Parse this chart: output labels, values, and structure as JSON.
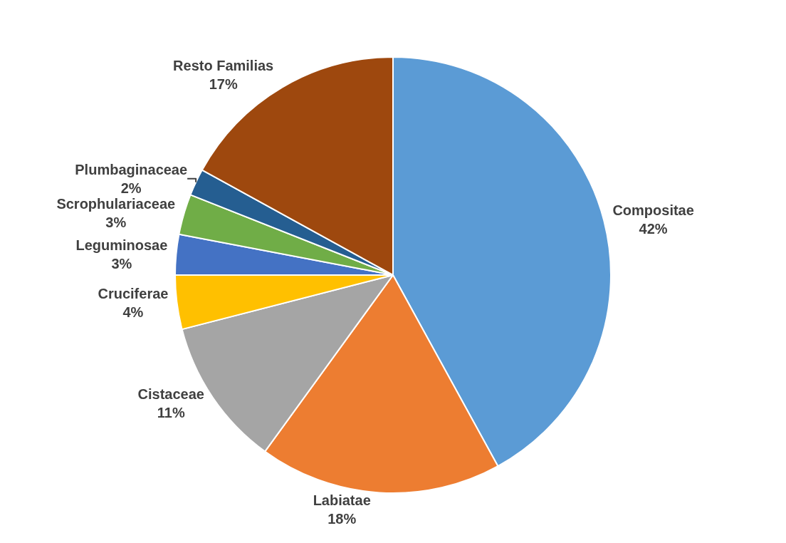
{
  "chart_data": {
    "type": "pie",
    "categories": [
      "Compositae",
      "Labiatae",
      "Cistaceae",
      "Cruciferae",
      "Leguminosae",
      "Scrophulariaceae",
      "Plumbaginaceae",
      "Resto Familias"
    ],
    "values": [
      42,
      18,
      11,
      4,
      3,
      3,
      2,
      17
    ],
    "value_labels": [
      "42%",
      "18%",
      "11%",
      "4%",
      "3%",
      "3%",
      "2%",
      "17%"
    ],
    "colors": [
      "#5b9bd5",
      "#ed7d31",
      "#a5a5a5",
      "#ffc000",
      "#4472c4",
      "#70ad47",
      "#255e91",
      "#9e480e"
    ],
    "legend": false
  }
}
